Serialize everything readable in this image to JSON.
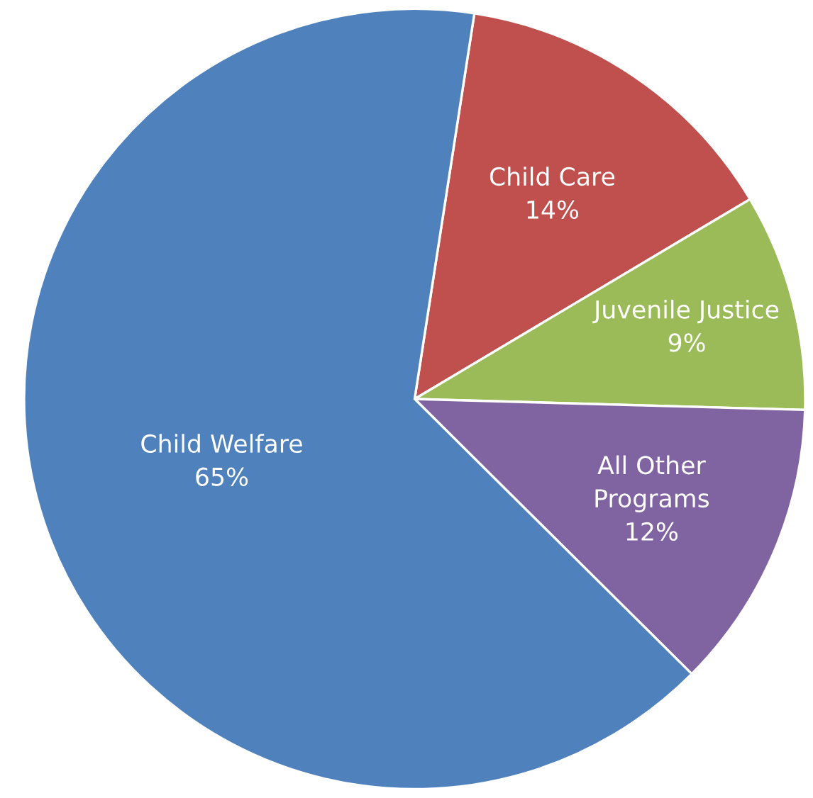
{
  "chart_data": {
    "type": "pie",
    "categories": [
      "Child Care",
      "Juvenile Justice",
      "All Other\nPrograms",
      "Child Welfare"
    ],
    "values": [
      14,
      9,
      12,
      65
    ],
    "colors": [
      "#c0504d",
      "#9bbb59",
      "#8064a2",
      "#4f81bd"
    ],
    "value_labels": [
      "14%",
      "9%",
      "12%",
      "65%"
    ]
  }
}
